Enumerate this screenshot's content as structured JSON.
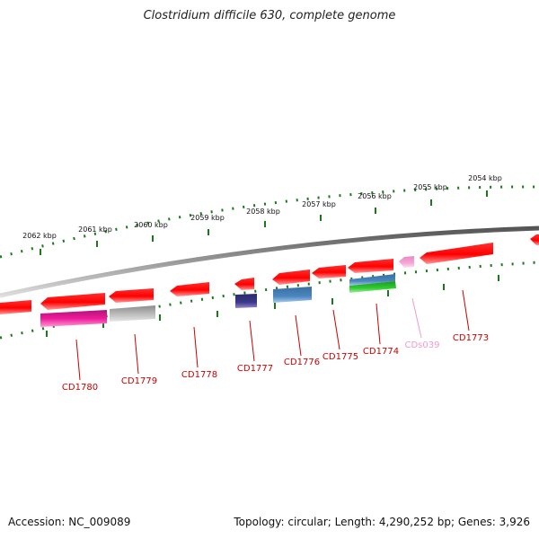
{
  "title": "Clostridium difficile 630, complete genome",
  "footer": {
    "accession": "Accession: NC_009089",
    "summary": "Topology: circular; Length: 4,290,252 bp; Genes: 3,926"
  },
  "colors": {
    "backbone": "#8a8a8a",
    "tick": "#1a7a1a",
    "cds": "#ff0000",
    "label": "#cc0000",
    "label_faded": "#f29ac8"
  },
  "kbp_labels": [
    "2062 kbp",
    "2061 kbp",
    "2060 kbp",
    "2059 kbp",
    "2058 kbp",
    "2057 kbp",
    "2056 kbp",
    "2055 kbp",
    "2054 kbp"
  ],
  "genes": [
    {
      "name": "CD1780",
      "color": "#ff0000"
    },
    {
      "name": "CD1779",
      "color": "#ff0000"
    },
    {
      "name": "CD1778",
      "color": "#ff0000"
    },
    {
      "name": "CD1777",
      "color": "#ff0000"
    },
    {
      "name": "CD1776",
      "color": "#ff0000"
    },
    {
      "name": "CD1775",
      "color": "#ff0000"
    },
    {
      "name": "CD1774",
      "color": "#ff0000"
    },
    {
      "name": "CDs039",
      "color": "#f29ac8"
    },
    {
      "name": "CD1773",
      "color": "#ff0000"
    }
  ],
  "feature_colors": {
    "magenta": "#ee1a99",
    "gray": "#b8b8b8",
    "navy": "#3b3a8a",
    "steel": "#4a86c0",
    "green": "#33cc33",
    "pink": "#f7a6d6"
  }
}
